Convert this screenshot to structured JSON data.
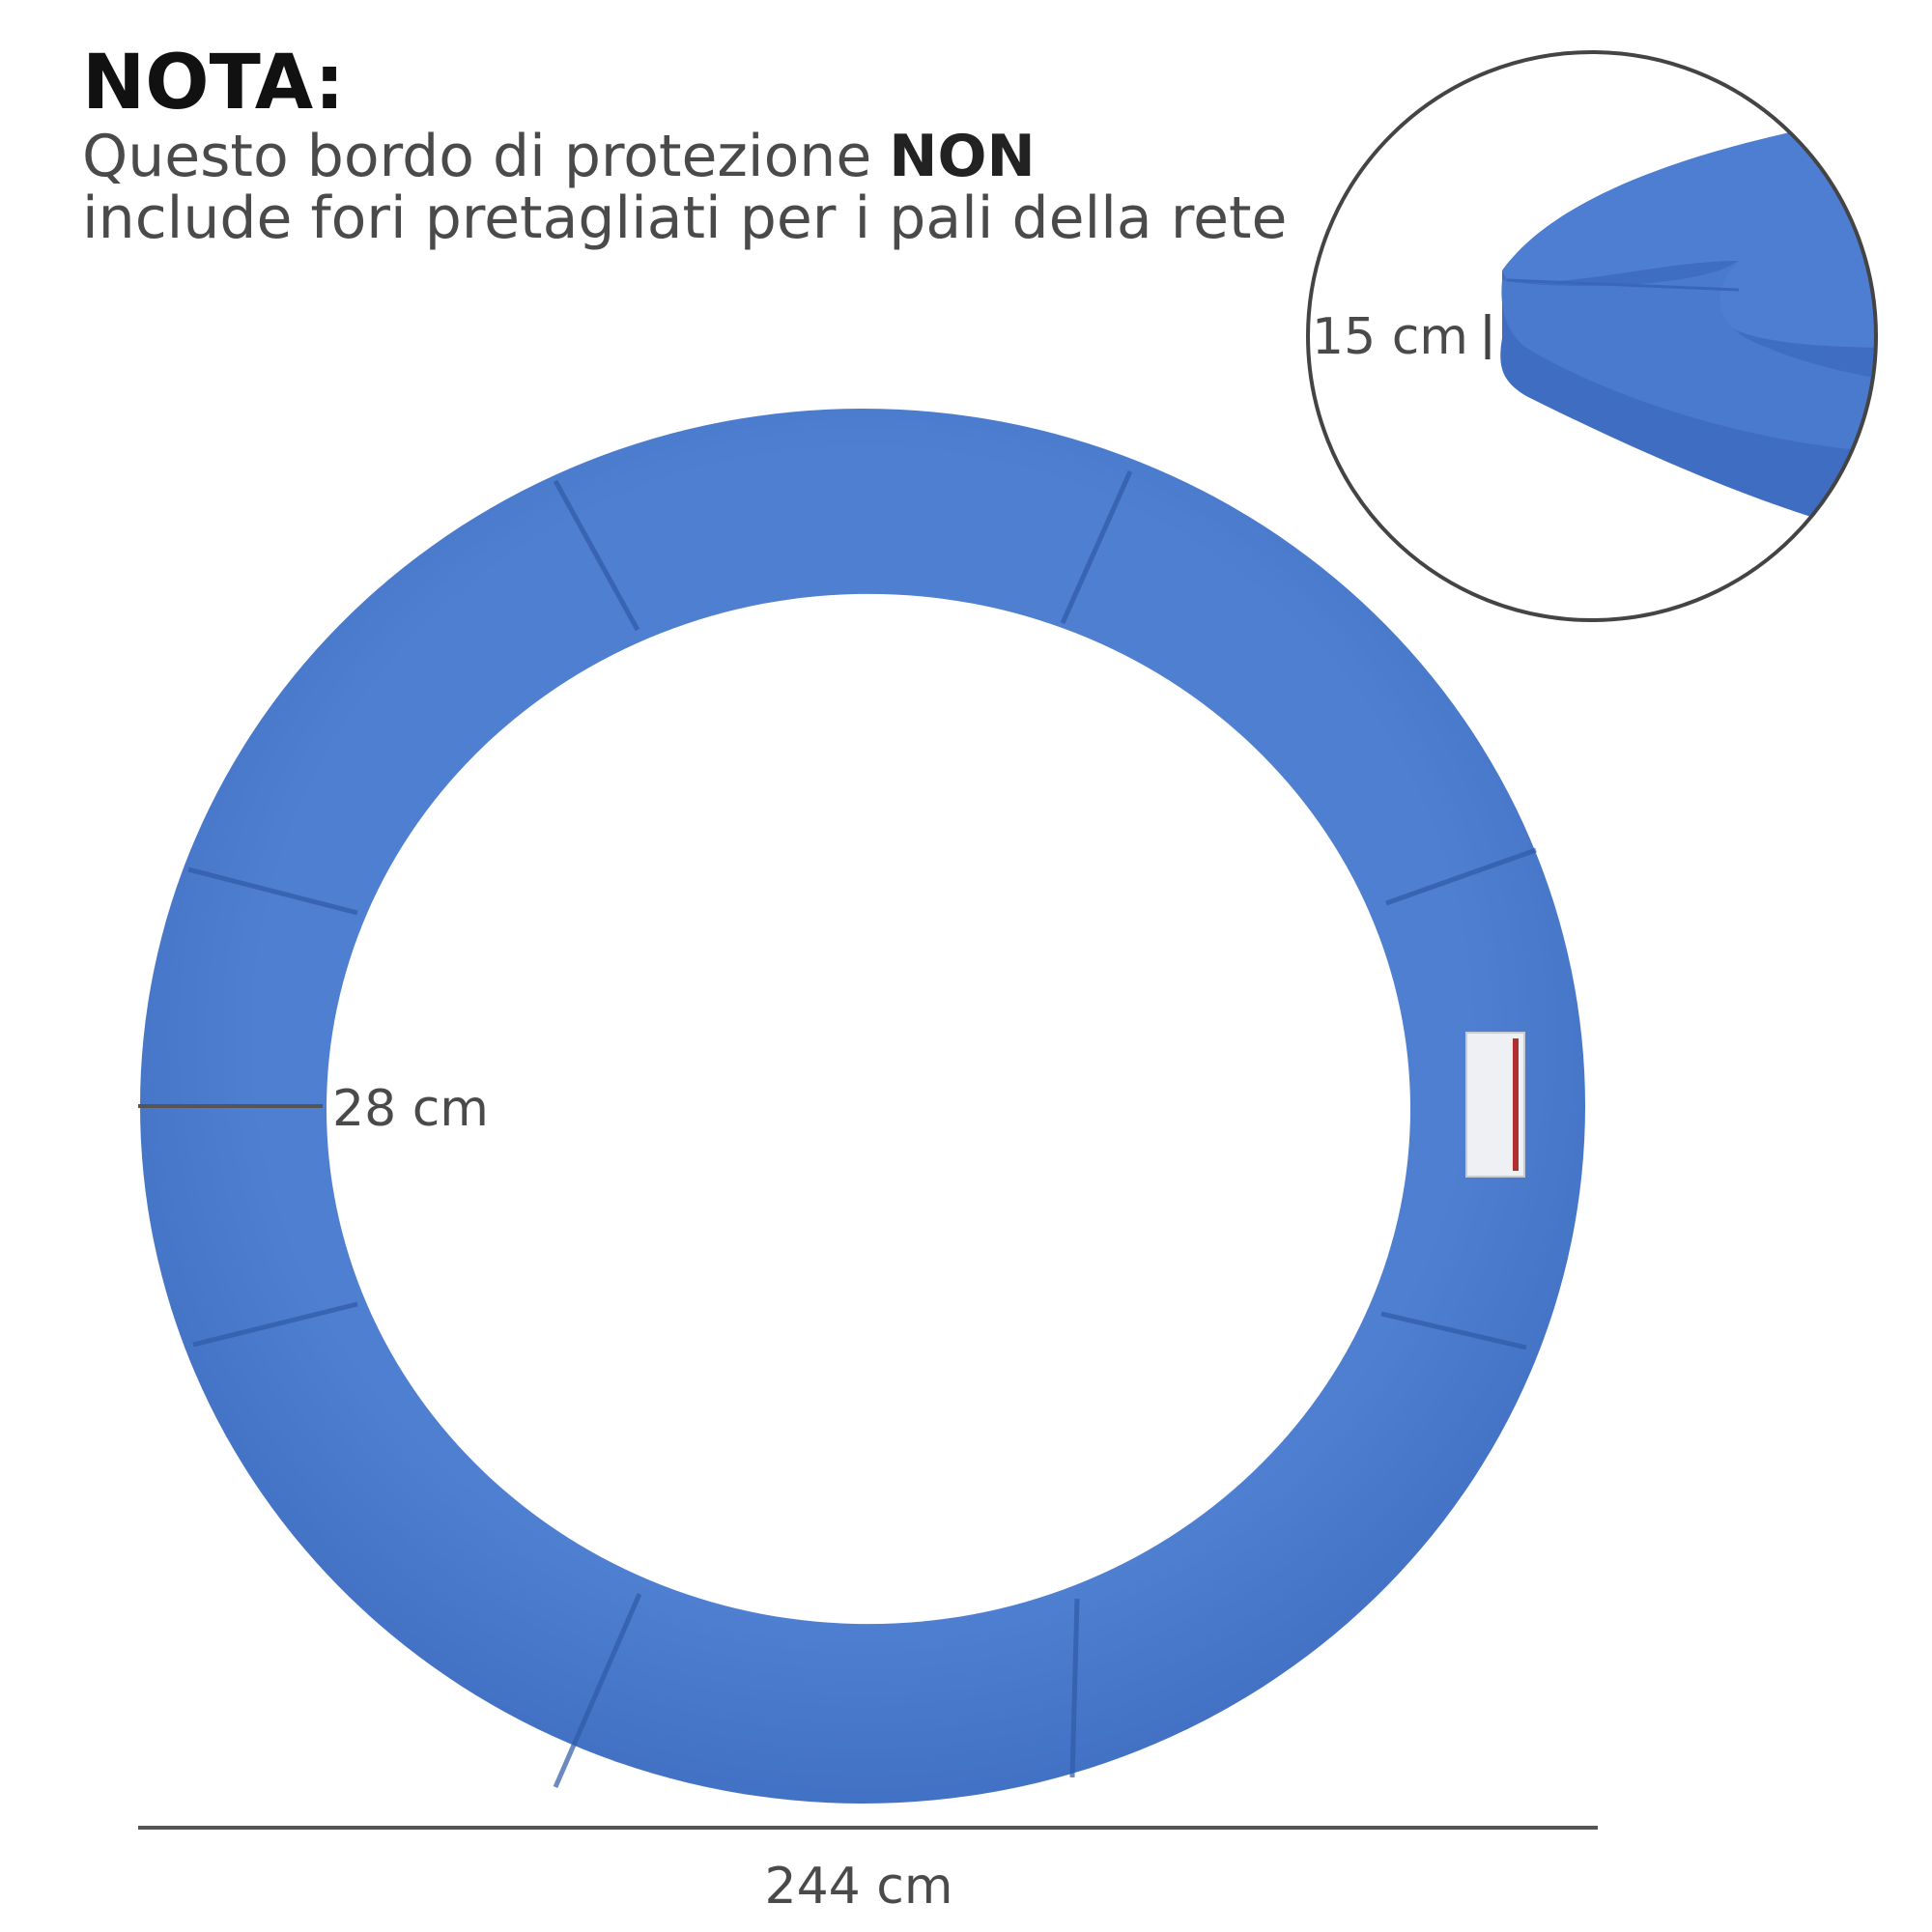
{
  "note": {
    "title": "NOTA:",
    "line1": "Questo bordo di protezione",
    "line1_bold": "NON",
    "line2": "include fori pretagliati per i pali della rete"
  },
  "dimensions": {
    "height": "15 cm",
    "width": "28 cm",
    "diameter": "244 cm"
  }
}
